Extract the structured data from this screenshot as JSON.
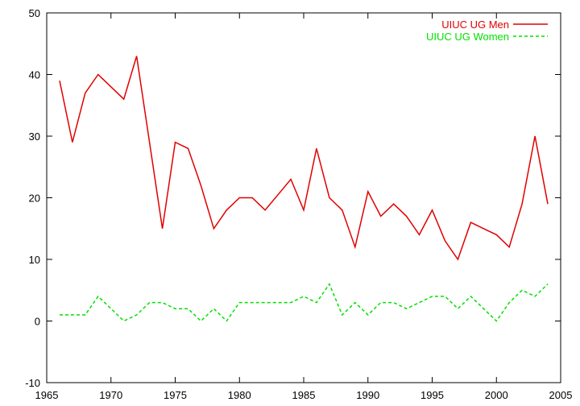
{
  "chart_data": {
    "type": "line",
    "title": "",
    "xlabel": "",
    "ylabel": "",
    "xlim": [
      1965,
      2005
    ],
    "ylim": [
      -10,
      50
    ],
    "x_ticks": [
      1965,
      1970,
      1975,
      1980,
      1985,
      1990,
      1995,
      2000,
      2005
    ],
    "y_ticks": [
      -10,
      0,
      10,
      20,
      30,
      40,
      50
    ],
    "grid": false,
    "legend_position": "top-right",
    "series": [
      {
        "name": "UIUC UG Men",
        "color": "#e00000",
        "style": "solid",
        "x": [
          1966,
          1967,
          1968,
          1969,
          1970,
          1971,
          1972,
          1973,
          1974,
          1975,
          1976,
          1977,
          1978,
          1979,
          1980,
          1981,
          1982,
          1983,
          1984,
          1985,
          1986,
          1987,
          1988,
          1989,
          1990,
          1991,
          1992,
          1993,
          1994,
          1995,
          1996,
          1997,
          1998,
          1999,
          2000,
          2001,
          2002,
          2003,
          2004
        ],
        "values": [
          39,
          29,
          37,
          40,
          38,
          36,
          43,
          29,
          15,
          29,
          28,
          22,
          15,
          18,
          20,
          20,
          18,
          20.5,
          23,
          18,
          28,
          20,
          18,
          12,
          21,
          17,
          19,
          17,
          14,
          18,
          13,
          10,
          16,
          15,
          14,
          12,
          19,
          30,
          19
        ]
      },
      {
        "name": "UIUC UG Women",
        "color": "#00e000",
        "style": "dashed",
        "x": [
          1966,
          1967,
          1968,
          1969,
          1970,
          1971,
          1972,
          1973,
          1974,
          1975,
          1976,
          1977,
          1978,
          1979,
          1980,
          1981,
          1982,
          1983,
          1984,
          1985,
          1986,
          1987,
          1988,
          1989,
          1990,
          1991,
          1992,
          1993,
          1994,
          1995,
          1996,
          1997,
          1998,
          1999,
          2000,
          2001,
          2002,
          2003,
          2004
        ],
        "values": [
          1,
          1,
          1,
          4,
          2,
          0,
          1,
          3,
          3,
          2,
          2,
          0,
          2,
          0,
          3,
          3,
          3,
          3,
          3,
          4,
          3,
          6,
          1,
          3,
          1,
          3,
          3,
          2,
          3,
          4,
          4,
          2,
          4,
          2,
          0,
          3,
          5,
          4,
          6
        ]
      }
    ]
  }
}
